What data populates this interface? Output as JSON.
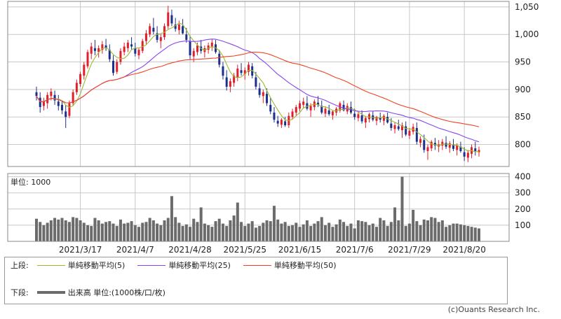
{
  "chart_data": {
    "type": "candlestick",
    "price_axis": {
      "ylim": [
        760,
        1060
      ],
      "ticks": [
        800,
        850,
        900,
        950,
        1000,
        1050
      ],
      "tick_labels": [
        "800",
        "850",
        "900",
        "950",
        "1,000",
        "1,050"
      ]
    },
    "volume_axis": {
      "ylim": [
        0,
        420
      ],
      "ticks": [
        100,
        200,
        300,
        400
      ],
      "tick_labels": [
        "100",
        "200",
        "300",
        "400"
      ]
    },
    "volume_unit_label": "単位: 1000",
    "x_tick_labels": [
      "2021/3/17",
      "2021/4/7",
      "2021/4/28",
      "2021/5/25",
      "2021/6/15",
      "2021/7/6",
      "2021/7/29",
      "2021/8/20"
    ],
    "x_tick_index": [
      12,
      27,
      42,
      57,
      72,
      87,
      102,
      117
    ],
    "grid": true,
    "ohlc": [
      [
        895,
        905,
        880,
        888
      ],
      [
        885,
        895,
        858,
        868
      ],
      [
        870,
        885,
        862,
        878
      ],
      [
        875,
        895,
        865,
        890
      ],
      [
        888,
        902,
        880,
        896
      ],
      [
        890,
        898,
        872,
        880
      ],
      [
        878,
        890,
        862,
        870
      ],
      [
        872,
        880,
        855,
        862
      ],
      [
        860,
        872,
        830,
        850
      ],
      [
        852,
        880,
        848,
        875
      ],
      [
        875,
        900,
        870,
        895
      ],
      [
        895,
        918,
        890,
        912
      ],
      [
        910,
        932,
        905,
        928
      ],
      [
        925,
        950,
        918,
        945
      ],
      [
        942,
        972,
        938,
        968
      ],
      [
        965,
        985,
        955,
        978
      ],
      [
        975,
        990,
        962,
        970
      ],
      [
        968,
        980,
        958,
        975
      ],
      [
        972,
        988,
        965,
        982
      ],
      [
        980,
        992,
        970,
        975
      ],
      [
        972,
        982,
        950,
        955
      ],
      [
        952,
        962,
        925,
        930
      ],
      [
        932,
        955,
        928,
        950
      ],
      [
        950,
        975,
        945,
        970
      ],
      [
        968,
        985,
        962,
        978
      ],
      [
        975,
        990,
        968,
        985
      ],
      [
        982,
        995,
        972,
        978
      ],
      [
        975,
        985,
        960,
        965
      ],
      [
        962,
        975,
        955,
        972
      ],
      [
        970,
        992,
        966,
        988
      ],
      [
        988,
        1008,
        982,
        1002
      ],
      [
        1000,
        1020,
        995,
        1015
      ],
      [
        1012,
        1030,
        1000,
        1005
      ],
      [
        1002,
        1015,
        985,
        990
      ],
      [
        988,
        1000,
        975,
        995
      ],
      [
        995,
        1020,
        990,
        1015
      ],
      [
        1015,
        1052,
        1010,
        1040
      ],
      [
        1035,
        1045,
        1015,
        1020
      ],
      [
        1018,
        1030,
        1005,
        1010
      ],
      [
        1008,
        1025,
        1000,
        1018
      ],
      [
        1015,
        1028,
        1000,
        1002
      ],
      [
        1000,
        1012,
        985,
        990
      ],
      [
        988,
        998,
        955,
        962
      ],
      [
        960,
        975,
        950,
        970
      ],
      [
        968,
        985,
        962,
        980
      ],
      [
        978,
        990,
        965,
        970
      ],
      [
        968,
        980,
        958,
        975
      ],
      [
        972,
        985,
        965,
        980
      ],
      [
        978,
        992,
        970,
        985
      ],
      [
        982,
        990,
        965,
        968
      ],
      [
        965,
        972,
        940,
        945
      ],
      [
        942,
        950,
        918,
        925
      ],
      [
        922,
        935,
        898,
        905
      ],
      [
        905,
        920,
        895,
        915
      ],
      [
        912,
        930,
        905,
        925
      ],
      [
        922,
        945,
        915,
        938
      ],
      [
        935,
        948,
        925,
        930
      ],
      [
        928,
        940,
        918,
        935
      ],
      [
        932,
        950,
        925,
        945
      ],
      [
        942,
        948,
        920,
        925
      ],
      [
        922,
        932,
        900,
        905
      ],
      [
        902,
        912,
        885,
        890
      ],
      [
        888,
        900,
        875,
        895
      ],
      [
        892,
        902,
        870,
        875
      ],
      [
        872,
        885,
        855,
        860
      ],
      [
        858,
        868,
        840,
        845
      ],
      [
        843,
        852,
        832,
        838
      ],
      [
        836,
        848,
        830,
        845
      ],
      [
        842,
        850,
        832,
        835
      ],
      [
        835,
        858,
        830,
        852
      ],
      [
        850,
        865,
        845,
        860
      ],
      [
        858,
        872,
        852,
        868
      ],
      [
        865,
        880,
        860,
        875
      ],
      [
        872,
        885,
        865,
        878
      ],
      [
        875,
        888,
        862,
        865
      ],
      [
        862,
        875,
        850,
        870
      ],
      [
        868,
        882,
        862,
        878
      ],
      [
        876,
        888,
        868,
        872
      ],
      [
        870,
        880,
        855,
        858
      ],
      [
        856,
        868,
        850,
        865
      ],
      [
        862,
        872,
        852,
        855
      ],
      [
        853,
        862,
        845,
        860
      ],
      [
        858,
        868,
        852,
        865
      ],
      [
        862,
        878,
        858,
        875
      ],
      [
        872,
        880,
        860,
        862
      ],
      [
        860,
        875,
        855,
        870
      ],
      [
        868,
        878,
        855,
        858
      ],
      [
        856,
        865,
        845,
        850
      ],
      [
        848,
        860,
        842,
        855
      ],
      [
        853,
        862,
        838,
        842
      ],
      [
        840,
        852,
        830,
        848
      ],
      [
        846,
        858,
        840,
        855
      ],
      [
        853,
        860,
        842,
        845
      ],
      [
        843,
        852,
        835,
        850
      ],
      [
        848,
        858,
        840,
        845
      ],
      [
        843,
        855,
        835,
        852
      ],
      [
        850,
        858,
        838,
        840
      ],
      [
        838,
        848,
        825,
        830
      ],
      [
        828,
        840,
        820,
        835
      ],
      [
        833,
        845,
        825,
        828
      ],
      [
        826,
        840,
        812,
        835
      ],
      [
        833,
        842,
        815,
        818
      ],
      [
        816,
        830,
        810,
        825
      ],
      [
        823,
        838,
        818,
        832
      ],
      [
        830,
        840,
        800,
        805
      ],
      [
        803,
        815,
        795,
        810
      ],
      [
        808,
        818,
        785,
        790
      ],
      [
        788,
        800,
        772,
        795
      ],
      [
        793,
        808,
        788,
        805
      ],
      [
        803,
        812,
        790,
        798
      ],
      [
        796,
        808,
        786,
        800
      ],
      [
        798,
        810,
        790,
        805
      ],
      [
        803,
        815,
        792,
        796
      ],
      [
        794,
        806,
        785,
        802
      ],
      [
        800,
        810,
        788,
        792
      ],
      [
        790,
        802,
        780,
        798
      ],
      [
        796,
        805,
        785,
        788
      ],
      [
        786,
        795,
        770,
        778
      ],
      [
        776,
        790,
        768,
        785
      ],
      [
        783,
        800,
        775,
        795
      ],
      [
        793,
        805,
        780,
        788
      ],
      [
        786,
        796,
        778,
        790
      ]
    ],
    "volume": [
      140,
      120,
      100,
      115,
      130,
      145,
      135,
      145,
      130,
      120,
      150,
      145,
      130,
      115,
      100,
      95,
      145,
      130,
      110,
      120,
      125,
      110,
      95,
      135,
      110,
      115,
      125,
      100,
      90,
      115,
      120,
      145,
      130,
      110,
      100,
      130,
      145,
      280,
      150,
      115,
      95,
      105,
      90,
      140,
      120,
      210,
      110,
      100,
      90,
      125,
      140,
      110,
      95,
      130,
      160,
      240,
      120,
      95,
      110,
      125,
      85,
      95,
      115,
      130,
      125,
      220,
      135,
      110,
      120,
      95,
      100,
      115,
      90,
      105,
      130,
      95,
      110,
      125,
      150,
      100,
      115,
      90,
      105,
      135,
      120,
      95,
      110,
      80,
      130,
      125,
      120,
      100,
      110,
      90,
      145,
      130,
      95,
      120,
      210,
      130,
      400,
      95,
      110,
      195,
      125,
      100,
      135,
      130,
      150,
      145,
      120,
      130,
      90,
      100,
      110,
      110,
      105,
      100,
      95,
      90,
      85,
      80
    ]
  },
  "legend": {
    "upper_label": "上段:",
    "sma5": "単純移動平均(5)",
    "sma25": "単純移動平均(25)",
    "sma50": "単純移動平均(50)",
    "lower_label": "下段:",
    "volume": "出来高 単位:(1000株/口/枚)"
  },
  "colors": {
    "up": "#e0202a",
    "down": "#1c2f8c",
    "sma5": "#99bb33",
    "sma25": "#8844ee",
    "sma50": "#ee4422",
    "volume": "#6b6b6b",
    "grid": "#c8c8c8",
    "frame": "#888888"
  },
  "credit": "(c)Ouants Research Inc."
}
